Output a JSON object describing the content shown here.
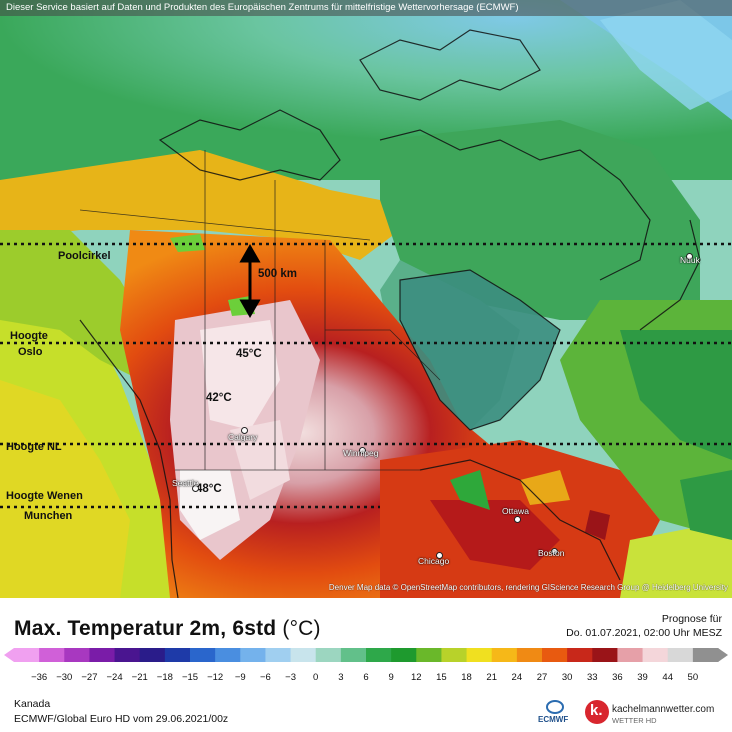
{
  "header_note": "Dieser Service basiert auf Daten und Produkten des Europäischen Zentrums für mittelfristige Wettervorhersage (ECMWF)",
  "attribution": "Denver Map data © OpenStreetMap contributors, rendering GIScience Research Group @ Heidelberg University",
  "annotations": {
    "poolcirkel": "Poolcirkel",
    "hoogte_oslo_1": "Hoogte",
    "hoogte_oslo_2": "Oslo",
    "hoogte_nl": "Hoogte NL",
    "hoogte_wenen_1": "Hoogte Wenen",
    "hoogte_wenen_2": "Munchen",
    "distance": "500 km"
  },
  "temps": {
    "t1": "45°C",
    "t2": "42°C",
    "t3": "48°C"
  },
  "cities": {
    "calgary": "Calgary",
    "seattle": "Seattle",
    "winnipeg": "Winnipeg",
    "ottawa": "Ottawa",
    "chicago": "Chicago",
    "boston": "Boston",
    "nuuk": "Nuuk"
  },
  "title": {
    "main": "Max. Temperatur 2m, 6std",
    "unit": "(°C)"
  },
  "forecast": {
    "line1": "Prognose für",
    "line2": "Do. 01.07.2021, 02:00 Uhr MESZ"
  },
  "scale_ticks": [
    "−36",
    "−30",
    "−27",
    "−24",
    "−21",
    "−18",
    "−15",
    "−12",
    "−9",
    "−6",
    "−3",
    "0",
    "3",
    "6",
    "9",
    "12",
    "15",
    "18",
    "21",
    "24",
    "27",
    "30",
    "33",
    "36",
    "39",
    "44",
    "50"
  ],
  "scale_colors": [
    "#f0a0f0",
    "#d060d8",
    "#a838c0",
    "#7a1ca8",
    "#4a1590",
    "#2a1c8a",
    "#1e3aa8",
    "#2a66cc",
    "#4a8ee0",
    "#74b2ec",
    "#a0cff0",
    "#c8e4ec",
    "#9cd6c0",
    "#62c08a",
    "#2ea84a",
    "#1e9a2e",
    "#6ab82a",
    "#b8d22a",
    "#f0e020",
    "#f6b818",
    "#f08a14",
    "#e85a10",
    "#c8281a",
    "#9a1418",
    "#e6a0a8",
    "#f4d6da",
    "#d8d8d8",
    "#909090"
  ],
  "region": "Kanada",
  "model": "ECMWF/Global Euro HD vom  29.06.2021/00z",
  "ecmwf_label": "ECMWF",
  "brand": {
    "name": "kachelmannwetter.com",
    "sub": "WETTER HD"
  }
}
